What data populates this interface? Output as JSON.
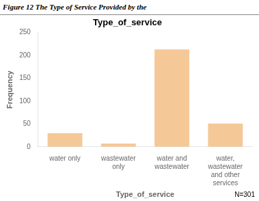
{
  "chart_data": {
    "type": "bar",
    "title": "Type_of_service",
    "xlabel": "Type_of_service",
    "ylabel": "Frequency",
    "categories": [
      "water only",
      "wastewater\nonly",
      "water and\nwastewater",
      "water,\nwastewater\nand other\nservices"
    ],
    "values": [
      30,
      7,
      213,
      51
    ],
    "color": "#F5C898",
    "ylim": [
      0,
      250
    ],
    "yticks": [
      0,
      50,
      100,
      150,
      200,
      250
    ],
    "grid": false,
    "annotations": [
      "Figure 12  The Type of Service Provided by the",
      "N=301"
    ]
  }
}
